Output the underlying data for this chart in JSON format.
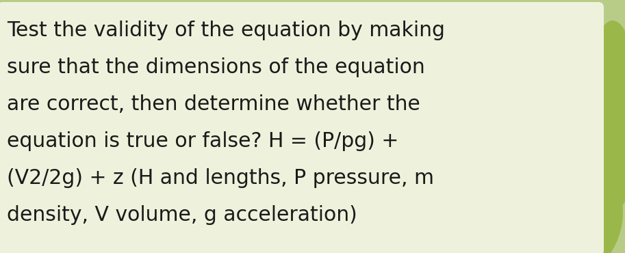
{
  "background_color": "#b8cc88",
  "card_color": "#eef2dc",
  "text_color": "#1a1a1a",
  "text_lines": [
    "Test the validity of the equation by making",
    "sure that the dimensions of the equation",
    "are correct, then determine whether the",
    "equation is true or false? H = (P/pg) +",
    "(V2/2g) + z (H and lengths, P pressure, m",
    "density, V volume, g acceleration)"
  ],
  "font_size": 21.5,
  "fig_width": 9.13,
  "fig_height": 3.7,
  "dpi": 100,
  "blob_color_dark": "#7a9e35",
  "blob_color_light": "#9ab84a"
}
